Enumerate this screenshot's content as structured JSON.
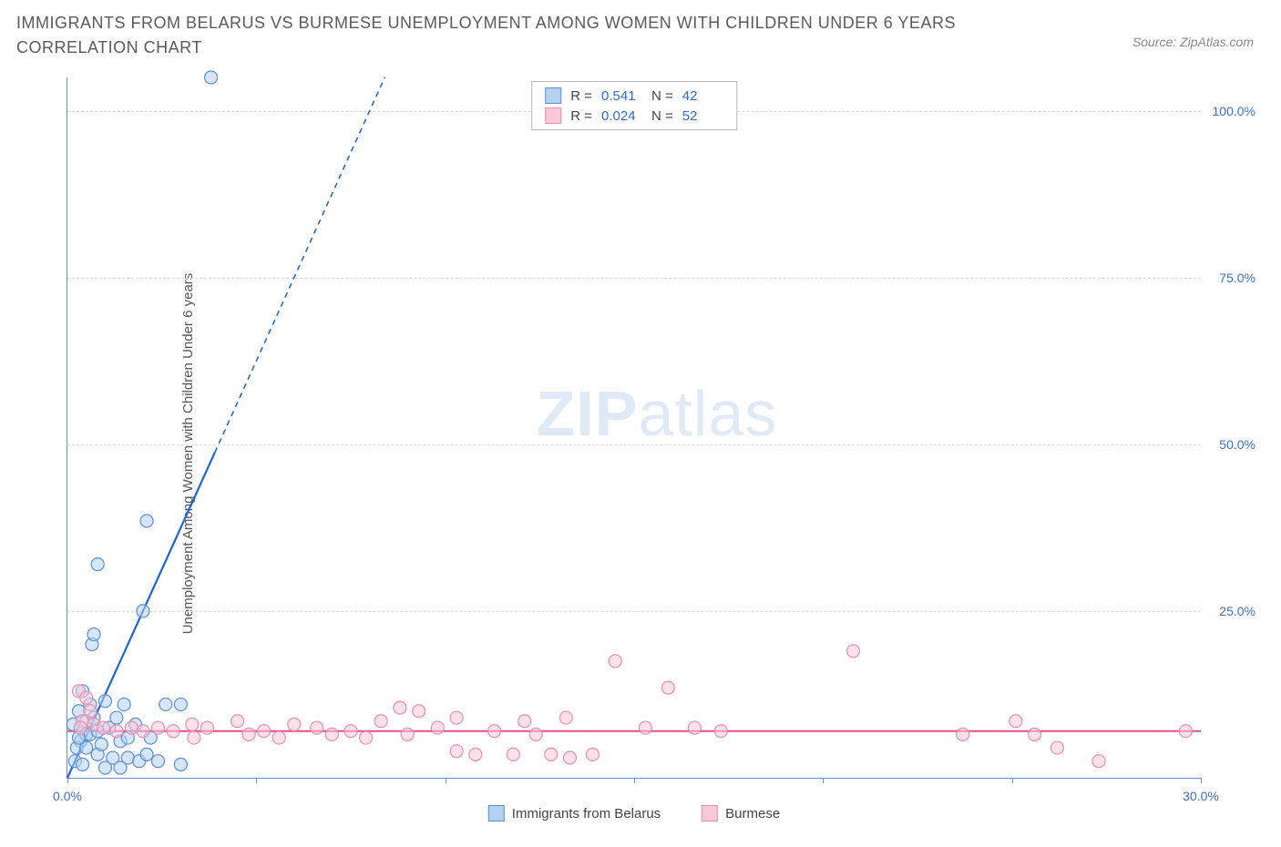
{
  "title": "IMMIGRANTS FROM BELARUS VS BURMESE UNEMPLOYMENT AMONG WOMEN WITH CHILDREN UNDER 6 YEARS CORRELATION CHART",
  "source": "Source: ZipAtlas.com",
  "watermark_bold": "ZIP",
  "watermark_light": "atlas",
  "chart": {
    "type": "scatter",
    "ylabel": "Unemployment Among Women with Children Under 6 years",
    "xlim": [
      0,
      30
    ],
    "ylim": [
      0,
      105
    ],
    "xticks": [
      0,
      5,
      10,
      15,
      20,
      25,
      30
    ],
    "xtick_labels": [
      "0.0%",
      "",
      "",
      "",
      "",
      "",
      "30.0%"
    ],
    "yticks": [
      25,
      50,
      75,
      100
    ],
    "ytick_labels": [
      "25.0%",
      "50.0%",
      "75.0%",
      "100.0%"
    ],
    "grid_color": "#d8d8d8",
    "axis_color": "#6b8fc9",
    "background_color": "#ffffff",
    "marker_radius": 7,
    "marker_stroke_width": 1.2,
    "series": [
      {
        "name": "Immigrants from Belarus",
        "key": "belarus",
        "fill": "#b5d1f2",
        "stroke": "#5a8fd6",
        "fill_opacity": 0.55,
        "R": "0.541",
        "N": "42",
        "trend": {
          "slope": 12.5,
          "intercept": 0,
          "solid_to_x": 3.9,
          "dash_to_x": 8.4,
          "color": "#1e64d4",
          "width": 2.2
        },
        "points": [
          [
            3.8,
            105
          ],
          [
            2.1,
            38.5
          ],
          [
            0.8,
            32
          ],
          [
            0.65,
            20
          ],
          [
            0.7,
            21.5
          ],
          [
            2.0,
            25
          ],
          [
            1.0,
            11.5
          ],
          [
            1.5,
            11
          ],
          [
            2.6,
            11
          ],
          [
            3.0,
            11
          ],
          [
            0.4,
            13
          ],
          [
            0.3,
            10
          ],
          [
            0.35,
            7.5
          ],
          [
            0.35,
            5.5
          ],
          [
            0.5,
            6.5
          ],
          [
            0.25,
            4.5
          ],
          [
            0.5,
            4.5
          ],
          [
            0.6,
            6.5
          ],
          [
            0.8,
            7
          ],
          [
            1.1,
            7.5
          ],
          [
            1.4,
            5.5
          ],
          [
            1.6,
            6
          ],
          [
            2.2,
            6
          ],
          [
            0.8,
            3.5
          ],
          [
            1.2,
            3
          ],
          [
            1.6,
            3
          ],
          [
            1.9,
            2.5
          ],
          [
            2.1,
            3.5
          ],
          [
            2.4,
            2.5
          ],
          [
            3.0,
            2
          ],
          [
            1.0,
            1.5
          ],
          [
            1.4,
            1.5
          ],
          [
            0.2,
            2.5
          ],
          [
            0.4,
            2
          ],
          [
            0.3,
            6
          ],
          [
            0.5,
            8.5
          ],
          [
            0.7,
            9
          ],
          [
            0.9,
            5
          ],
          [
            0.15,
            8
          ],
          [
            0.6,
            11
          ],
          [
            1.3,
            9
          ],
          [
            1.8,
            8
          ]
        ]
      },
      {
        "name": "Burmese",
        "key": "burmese",
        "fill": "#f9c9d8",
        "stroke": "#e58fb0",
        "fill_opacity": 0.55,
        "R": "0.024",
        "N": "52",
        "trend": {
          "y_const": 7,
          "color": "#e94b8a",
          "width": 2
        },
        "points": [
          [
            0.3,
            13
          ],
          [
            0.5,
            12
          ],
          [
            0.6,
            10
          ],
          [
            0.4,
            8.5
          ],
          [
            0.35,
            7.5
          ],
          [
            0.7,
            8
          ],
          [
            0.95,
            7.5
          ],
          [
            1.3,
            7
          ],
          [
            1.7,
            7.5
          ],
          [
            2.0,
            7
          ],
          [
            2.4,
            7.5
          ],
          [
            2.8,
            7
          ],
          [
            3.3,
            8
          ],
          [
            3.35,
            6
          ],
          [
            3.7,
            7.5
          ],
          [
            4.5,
            8.5
          ],
          [
            4.8,
            6.5
          ],
          [
            5.2,
            7
          ],
          [
            5.6,
            6
          ],
          [
            6.0,
            8
          ],
          [
            6.6,
            7.5
          ],
          [
            7.0,
            6.5
          ],
          [
            7.5,
            7
          ],
          [
            7.9,
            6
          ],
          [
            8.3,
            8.5
          ],
          [
            8.8,
            10.5
          ],
          [
            9.0,
            6.5
          ],
          [
            9.3,
            10
          ],
          [
            9.8,
            7.5
          ],
          [
            10.3,
            9
          ],
          [
            10.3,
            4
          ],
          [
            10.8,
            3.5
          ],
          [
            11.3,
            7
          ],
          [
            11.8,
            3.5
          ],
          [
            12.1,
            8.5
          ],
          [
            12.4,
            6.5
          ],
          [
            12.8,
            3.5
          ],
          [
            13.2,
            9
          ],
          [
            13.3,
            3
          ],
          [
            13.9,
            3.5
          ],
          [
            14.5,
            17.5
          ],
          [
            15.3,
            7.5
          ],
          [
            15.9,
            13.5
          ],
          [
            16.6,
            7.5
          ],
          [
            17.3,
            7
          ],
          [
            20.8,
            19
          ],
          [
            23.7,
            6.5
          ],
          [
            25.1,
            8.5
          ],
          [
            25.6,
            6.5
          ],
          [
            26.2,
            4.5
          ],
          [
            27.3,
            2.5
          ],
          [
            29.6,
            7
          ]
        ]
      }
    ]
  },
  "legend_top": {
    "r_label": "R =",
    "n_label": "N ="
  },
  "legend_bottom": [
    {
      "label": "Immigrants from Belarus",
      "fill": "#b5d1f2",
      "stroke": "#5a8fd6"
    },
    {
      "label": "Burmese",
      "fill": "#f9c9d8",
      "stroke": "#e58fb0"
    }
  ]
}
